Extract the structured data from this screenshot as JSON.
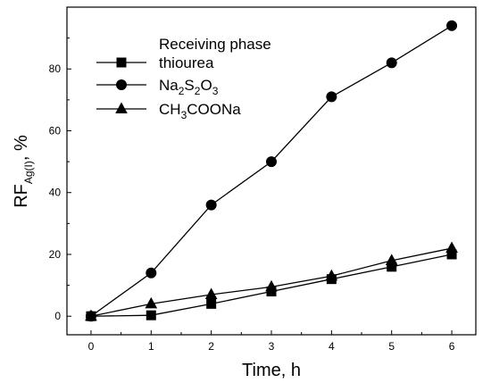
{
  "chart_data": {
    "type": "line",
    "xlabel": "Time, h",
    "ylabel": {
      "main": "RF",
      "subscript": "Ag(I)",
      "suffix": ", %"
    },
    "xlim": [
      -0.4,
      6.4
    ],
    "ylim": [
      -6,
      100
    ],
    "xticks": [
      0,
      1,
      2,
      3,
      4,
      5,
      6
    ],
    "yticks": [
      0,
      20,
      40,
      60,
      80
    ],
    "grid": false,
    "legend": {
      "title": "Receiving phase",
      "position": "top-left"
    },
    "x": [
      0,
      1,
      2,
      3,
      4,
      5,
      6
    ],
    "series": [
      {
        "name": "thiourea",
        "marker": "square",
        "label_parts": [
          {
            "t": "thiourea",
            "sub": false
          }
        ],
        "values": [
          0,
          0.3,
          4,
          8,
          12,
          16,
          20
        ]
      },
      {
        "name": "Na2S2O3",
        "marker": "circle",
        "label_parts": [
          {
            "t": "Na",
            "sub": false
          },
          {
            "t": "2",
            "sub": true
          },
          {
            "t": "S",
            "sub": false
          },
          {
            "t": "2",
            "sub": true
          },
          {
            "t": "O",
            "sub": false
          },
          {
            "t": "3",
            "sub": true
          }
        ],
        "values": [
          0,
          14,
          36,
          50,
          71,
          82,
          94
        ]
      },
      {
        "name": "CH3COONa",
        "marker": "triangle",
        "label_parts": [
          {
            "t": "CH",
            "sub": false
          },
          {
            "t": "3",
            "sub": true
          },
          {
            "t": "COONa",
            "sub": false
          }
        ],
        "values": [
          0,
          4,
          7,
          9.5,
          13,
          18,
          22
        ]
      }
    ]
  }
}
